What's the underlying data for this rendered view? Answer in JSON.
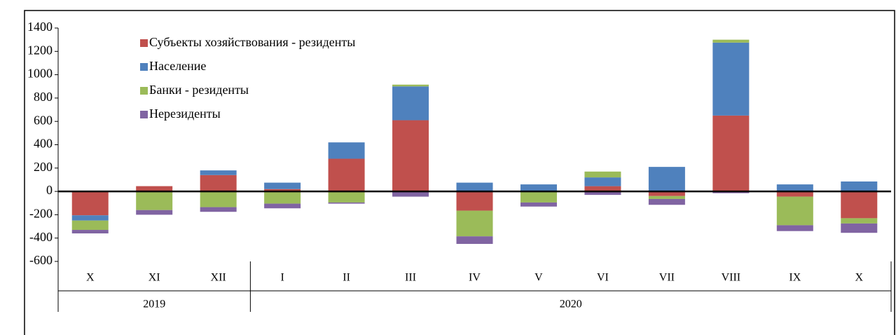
{
  "chart_data": {
    "type": "stacked_bar",
    "categories": [
      "X",
      "XI",
      "XII",
      "I",
      "II",
      "III",
      "IV",
      "V",
      "VI",
      "VII",
      "VIII",
      "IX",
      "X"
    ],
    "groups": [
      {
        "label": "2019",
        "size": 3
      },
      {
        "label": "2020",
        "size": 10
      }
    ],
    "series": [
      {
        "name": "Субъекты хозяйствования - резиденты",
        "color": "#c0504d",
        "values": [
          -205,
          45,
          140,
          20,
          280,
          610,
          -165,
          0,
          45,
          -40,
          650,
          -45,
          -230
        ]
      },
      {
        "name": "Население",
        "color": "#4f81bd",
        "values": [
          -45,
          0,
          40,
          55,
          140,
          290,
          75,
          60,
          75,
          210,
          625,
          60,
          85
        ]
      },
      {
        "name": "Банки - резиденты",
        "color": "#9bbb59",
        "values": [
          -80,
          -160,
          -135,
          -105,
          -95,
          15,
          -220,
          -95,
          50,
          -25,
          25,
          -245,
          -45
        ]
      },
      {
        "name": "Нерезиденты",
        "color": "#8064a2",
        "values": [
          -30,
          -40,
          -40,
          -40,
          -10,
          -45,
          -65,
          -35,
          -30,
          -50,
          -15,
          -50,
          -80
        ]
      }
    ],
    "ylim": [
      -600,
      1400
    ],
    "yticks": [
      -600,
      -400,
      -200,
      0,
      200,
      400,
      600,
      800,
      1000,
      1200,
      1400
    ],
    "legend": "upper left"
  }
}
